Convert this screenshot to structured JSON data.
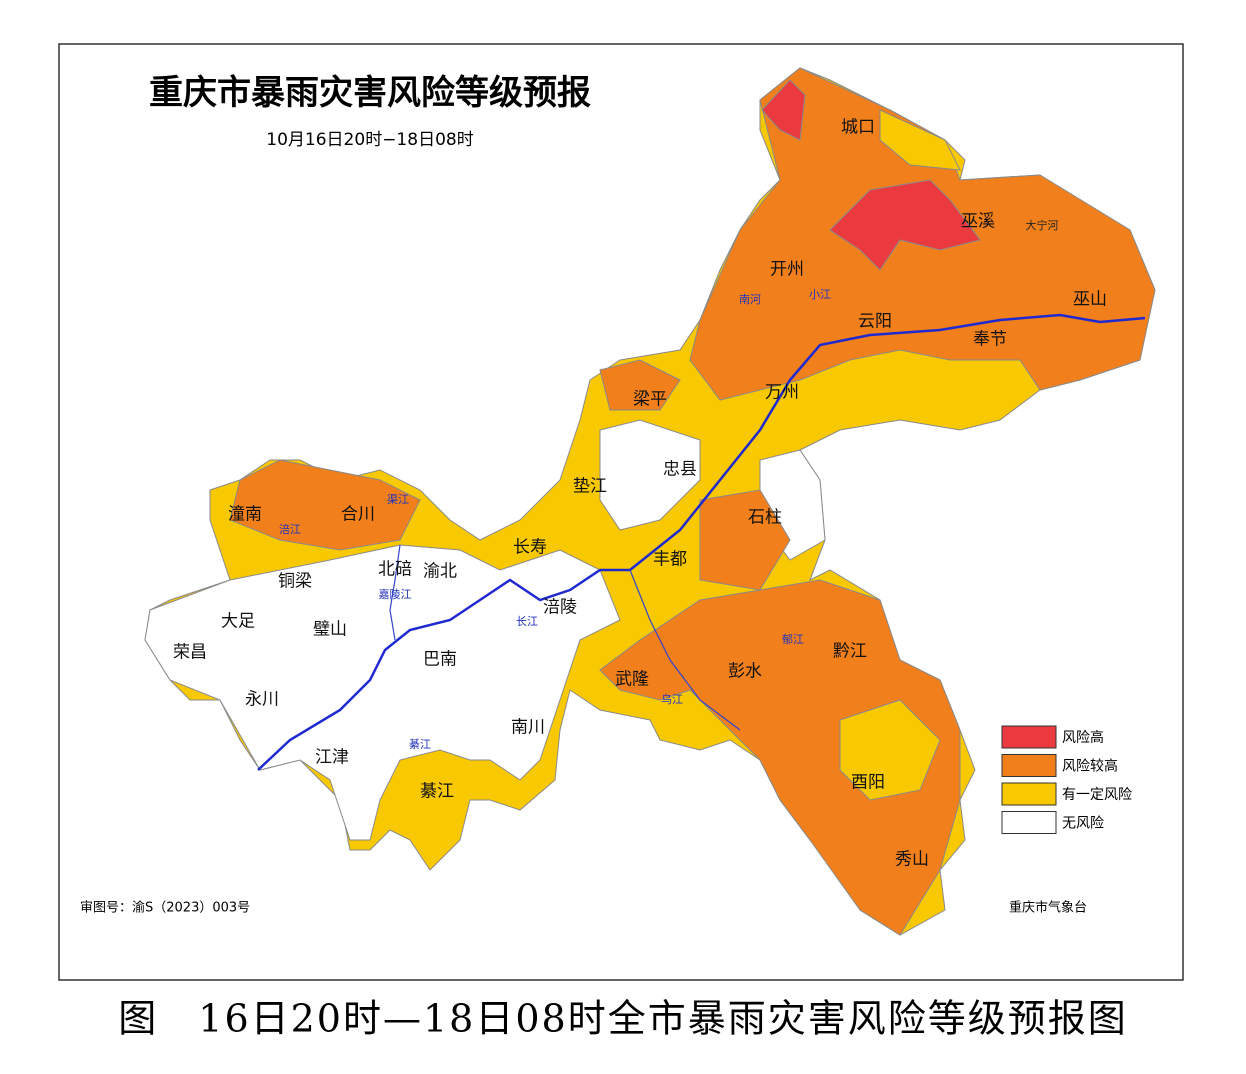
{
  "map": {
    "title": "重庆市暴雨灾害风险等级预报",
    "subtitle": "10月16日20时−18日08时",
    "districts": [
      "城口",
      "巫溪",
      "开州",
      "巫山",
      "云阳",
      "奉节",
      "梁平",
      "万州",
      "忠县",
      "垫江",
      "石柱",
      "潼南",
      "合川",
      "长寿",
      "丰都",
      "北碚",
      "渝北",
      "铜梁",
      "大足",
      "璧山",
      "涪陵",
      "荣昌",
      "巴南",
      "黔江",
      "彭水",
      "武隆",
      "永川",
      "南川",
      "江津",
      "酉阳",
      "綦江",
      "秀山"
    ],
    "rivers": [
      "大宁河",
      "南河",
      "小江",
      "长江",
      "嘉陵江",
      "涪江",
      "渠江",
      "乌江",
      "郁江",
      "綦江"
    ],
    "legend": [
      {
        "label": "风险高",
        "color": "#ea3a3f"
      },
      {
        "label": "风险较高",
        "color": "#f07f1c"
      },
      {
        "label": "有一定风险",
        "color": "#f8c800"
      },
      {
        "label": "无风险",
        "color": "#ffffff"
      }
    ],
    "review_number": "审图号：渝S（2023）003号",
    "issuer": "重庆市气象台"
  },
  "caption": "图　16日20时—18日08时全市暴雨灾害风险等级预报图"
}
